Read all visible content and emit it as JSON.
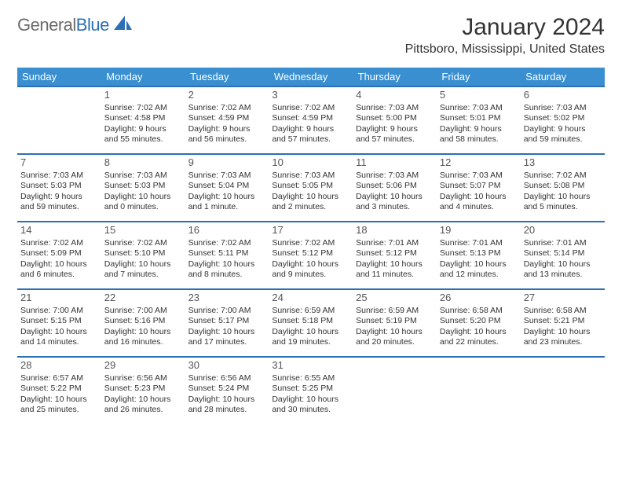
{
  "logo": {
    "general": "General",
    "blue": "Blue"
  },
  "title": "January 2024",
  "location": "Pittsboro, Mississippi, United States",
  "colors": {
    "header_bg": "#3a8fd0",
    "border": "#2d6fb4",
    "logo_gray": "#6b6b6b",
    "logo_blue": "#2d6fb4",
    "text": "#333333",
    "bg": "#ffffff"
  },
  "day_headers": [
    "Sunday",
    "Monday",
    "Tuesday",
    "Wednesday",
    "Thursday",
    "Friday",
    "Saturday"
  ],
  "weeks": [
    [
      null,
      {
        "n": "1",
        "sr": "Sunrise: 7:02 AM",
        "ss": "Sunset: 4:58 PM",
        "dl": "Daylight: 9 hours and 55 minutes."
      },
      {
        "n": "2",
        "sr": "Sunrise: 7:02 AM",
        "ss": "Sunset: 4:59 PM",
        "dl": "Daylight: 9 hours and 56 minutes."
      },
      {
        "n": "3",
        "sr": "Sunrise: 7:02 AM",
        "ss": "Sunset: 4:59 PM",
        "dl": "Daylight: 9 hours and 57 minutes."
      },
      {
        "n": "4",
        "sr": "Sunrise: 7:03 AM",
        "ss": "Sunset: 5:00 PM",
        "dl": "Daylight: 9 hours and 57 minutes."
      },
      {
        "n": "5",
        "sr": "Sunrise: 7:03 AM",
        "ss": "Sunset: 5:01 PM",
        "dl": "Daylight: 9 hours and 58 minutes."
      },
      {
        "n": "6",
        "sr": "Sunrise: 7:03 AM",
        "ss": "Sunset: 5:02 PM",
        "dl": "Daylight: 9 hours and 59 minutes."
      }
    ],
    [
      {
        "n": "7",
        "sr": "Sunrise: 7:03 AM",
        "ss": "Sunset: 5:03 PM",
        "dl": "Daylight: 9 hours and 59 minutes."
      },
      {
        "n": "8",
        "sr": "Sunrise: 7:03 AM",
        "ss": "Sunset: 5:03 PM",
        "dl": "Daylight: 10 hours and 0 minutes."
      },
      {
        "n": "9",
        "sr": "Sunrise: 7:03 AM",
        "ss": "Sunset: 5:04 PM",
        "dl": "Daylight: 10 hours and 1 minute."
      },
      {
        "n": "10",
        "sr": "Sunrise: 7:03 AM",
        "ss": "Sunset: 5:05 PM",
        "dl": "Daylight: 10 hours and 2 minutes."
      },
      {
        "n": "11",
        "sr": "Sunrise: 7:03 AM",
        "ss": "Sunset: 5:06 PM",
        "dl": "Daylight: 10 hours and 3 minutes."
      },
      {
        "n": "12",
        "sr": "Sunrise: 7:03 AM",
        "ss": "Sunset: 5:07 PM",
        "dl": "Daylight: 10 hours and 4 minutes."
      },
      {
        "n": "13",
        "sr": "Sunrise: 7:02 AM",
        "ss": "Sunset: 5:08 PM",
        "dl": "Daylight: 10 hours and 5 minutes."
      }
    ],
    [
      {
        "n": "14",
        "sr": "Sunrise: 7:02 AM",
        "ss": "Sunset: 5:09 PM",
        "dl": "Daylight: 10 hours and 6 minutes."
      },
      {
        "n": "15",
        "sr": "Sunrise: 7:02 AM",
        "ss": "Sunset: 5:10 PM",
        "dl": "Daylight: 10 hours and 7 minutes."
      },
      {
        "n": "16",
        "sr": "Sunrise: 7:02 AM",
        "ss": "Sunset: 5:11 PM",
        "dl": "Daylight: 10 hours and 8 minutes."
      },
      {
        "n": "17",
        "sr": "Sunrise: 7:02 AM",
        "ss": "Sunset: 5:12 PM",
        "dl": "Daylight: 10 hours and 9 minutes."
      },
      {
        "n": "18",
        "sr": "Sunrise: 7:01 AM",
        "ss": "Sunset: 5:12 PM",
        "dl": "Daylight: 10 hours and 11 minutes."
      },
      {
        "n": "19",
        "sr": "Sunrise: 7:01 AM",
        "ss": "Sunset: 5:13 PM",
        "dl": "Daylight: 10 hours and 12 minutes."
      },
      {
        "n": "20",
        "sr": "Sunrise: 7:01 AM",
        "ss": "Sunset: 5:14 PM",
        "dl": "Daylight: 10 hours and 13 minutes."
      }
    ],
    [
      {
        "n": "21",
        "sr": "Sunrise: 7:00 AM",
        "ss": "Sunset: 5:15 PM",
        "dl": "Daylight: 10 hours and 14 minutes."
      },
      {
        "n": "22",
        "sr": "Sunrise: 7:00 AM",
        "ss": "Sunset: 5:16 PM",
        "dl": "Daylight: 10 hours and 16 minutes."
      },
      {
        "n": "23",
        "sr": "Sunrise: 7:00 AM",
        "ss": "Sunset: 5:17 PM",
        "dl": "Daylight: 10 hours and 17 minutes."
      },
      {
        "n": "24",
        "sr": "Sunrise: 6:59 AM",
        "ss": "Sunset: 5:18 PM",
        "dl": "Daylight: 10 hours and 19 minutes."
      },
      {
        "n": "25",
        "sr": "Sunrise: 6:59 AM",
        "ss": "Sunset: 5:19 PM",
        "dl": "Daylight: 10 hours and 20 minutes."
      },
      {
        "n": "26",
        "sr": "Sunrise: 6:58 AM",
        "ss": "Sunset: 5:20 PM",
        "dl": "Daylight: 10 hours and 22 minutes."
      },
      {
        "n": "27",
        "sr": "Sunrise: 6:58 AM",
        "ss": "Sunset: 5:21 PM",
        "dl": "Daylight: 10 hours and 23 minutes."
      }
    ],
    [
      {
        "n": "28",
        "sr": "Sunrise: 6:57 AM",
        "ss": "Sunset: 5:22 PM",
        "dl": "Daylight: 10 hours and 25 minutes."
      },
      {
        "n": "29",
        "sr": "Sunrise: 6:56 AM",
        "ss": "Sunset: 5:23 PM",
        "dl": "Daylight: 10 hours and 26 minutes."
      },
      {
        "n": "30",
        "sr": "Sunrise: 6:56 AM",
        "ss": "Sunset: 5:24 PM",
        "dl": "Daylight: 10 hours and 28 minutes."
      },
      {
        "n": "31",
        "sr": "Sunrise: 6:55 AM",
        "ss": "Sunset: 5:25 PM",
        "dl": "Daylight: 10 hours and 30 minutes."
      },
      null,
      null,
      null
    ]
  ]
}
